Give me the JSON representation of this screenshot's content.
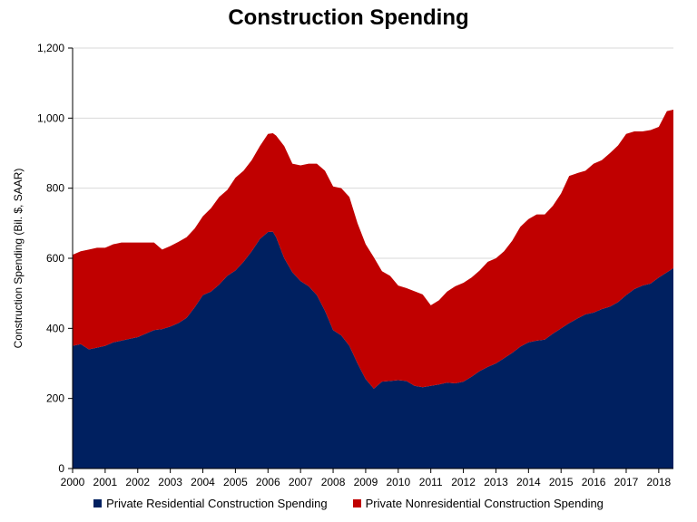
{
  "chart_data": {
    "type": "area",
    "stacked": true,
    "title": "Construction Spending",
    "ylabel": "Construction Spending (Bil. $, SAAR)",
    "xlabel": "",
    "x_tick_labels": [
      "2000",
      "2001",
      "2002",
      "2003",
      "2004",
      "2005",
      "2006",
      "2007",
      "2008",
      "2009",
      "2010",
      "2011",
      "2012",
      "2013",
      "2014",
      "2015",
      "2016",
      "2017",
      "2018"
    ],
    "y_tick_labels": [
      "0",
      "200",
      "400",
      "600",
      "800",
      "1,000",
      "1,200"
    ],
    "ylim": [
      0,
      1200
    ],
    "xlim": [
      2000,
      2018.45
    ],
    "grid": "horizontal",
    "legend_position": "bottom",
    "series": [
      {
        "name": "Private Residential Construction Spending",
        "color": "#002060",
        "points": [
          [
            2000.0,
            350
          ],
          [
            2000.25,
            355
          ],
          [
            2000.5,
            340
          ],
          [
            2000.75,
            345
          ],
          [
            2001.0,
            350
          ],
          [
            2001.25,
            360
          ],
          [
            2001.5,
            365
          ],
          [
            2001.75,
            370
          ],
          [
            2002.0,
            375
          ],
          [
            2002.25,
            385
          ],
          [
            2002.5,
            395
          ],
          [
            2002.75,
            398
          ],
          [
            2003.0,
            405
          ],
          [
            2003.25,
            415
          ],
          [
            2003.5,
            430
          ],
          [
            2003.75,
            460
          ],
          [
            2004.0,
            495
          ],
          [
            2004.25,
            505
          ],
          [
            2004.5,
            525
          ],
          [
            2004.75,
            550
          ],
          [
            2005.0,
            565
          ],
          [
            2005.25,
            590
          ],
          [
            2005.5,
            620
          ],
          [
            2005.75,
            655
          ],
          [
            2006.0,
            675
          ],
          [
            2006.15,
            676
          ],
          [
            2006.25,
            660
          ],
          [
            2006.5,
            600
          ],
          [
            2006.75,
            560
          ],
          [
            2007.0,
            535
          ],
          [
            2007.25,
            520
          ],
          [
            2007.5,
            495
          ],
          [
            2007.75,
            450
          ],
          [
            2008.0,
            395
          ],
          [
            2008.25,
            380
          ],
          [
            2008.5,
            350
          ],
          [
            2008.75,
            300
          ],
          [
            2009.0,
            255
          ],
          [
            2009.25,
            228
          ],
          [
            2009.5,
            248
          ],
          [
            2009.75,
            250
          ],
          [
            2010.0,
            252
          ],
          [
            2010.25,
            250
          ],
          [
            2010.5,
            236
          ],
          [
            2010.75,
            232
          ],
          [
            2011.0,
            236
          ],
          [
            2011.25,
            240
          ],
          [
            2011.5,
            245
          ],
          [
            2011.75,
            243
          ],
          [
            2012.0,
            248
          ],
          [
            2012.25,
            262
          ],
          [
            2012.5,
            278
          ],
          [
            2012.75,
            290
          ],
          [
            2013.0,
            300
          ],
          [
            2013.25,
            315
          ],
          [
            2013.5,
            330
          ],
          [
            2013.75,
            348
          ],
          [
            2014.0,
            360
          ],
          [
            2014.25,
            365
          ],
          [
            2014.5,
            368
          ],
          [
            2014.75,
            385
          ],
          [
            2015.0,
            400
          ],
          [
            2015.25,
            415
          ],
          [
            2015.5,
            428
          ],
          [
            2015.75,
            440
          ],
          [
            2016.0,
            445
          ],
          [
            2016.25,
            455
          ],
          [
            2016.5,
            462
          ],
          [
            2016.75,
            475
          ],
          [
            2017.0,
            495
          ],
          [
            2017.25,
            512
          ],
          [
            2017.5,
            522
          ],
          [
            2017.75,
            528
          ],
          [
            2018.0,
            545
          ],
          [
            2018.25,
            560
          ],
          [
            2018.45,
            572
          ]
        ]
      },
      {
        "name": "Private Nonresidential Construction Spending",
        "color": "#c00000",
        "points": [
          [
            2000.0,
            260
          ],
          [
            2000.25,
            265
          ],
          [
            2000.5,
            285
          ],
          [
            2000.75,
            285
          ],
          [
            2001.0,
            280
          ],
          [
            2001.25,
            280
          ],
          [
            2001.5,
            280
          ],
          [
            2001.75,
            275
          ],
          [
            2002.0,
            270
          ],
          [
            2002.25,
            260
          ],
          [
            2002.5,
            250
          ],
          [
            2002.75,
            227
          ],
          [
            2003.0,
            230
          ],
          [
            2003.25,
            232
          ],
          [
            2003.5,
            230
          ],
          [
            2003.75,
            225
          ],
          [
            2004.0,
            225
          ],
          [
            2004.25,
            238
          ],
          [
            2004.5,
            250
          ],
          [
            2004.75,
            245
          ],
          [
            2005.0,
            265
          ],
          [
            2005.25,
            260
          ],
          [
            2005.5,
            260
          ],
          [
            2005.75,
            265
          ],
          [
            2006.0,
            280
          ],
          [
            2006.15,
            281
          ],
          [
            2006.25,
            290
          ],
          [
            2006.5,
            320
          ],
          [
            2006.75,
            310
          ],
          [
            2007.0,
            330
          ],
          [
            2007.25,
            350
          ],
          [
            2007.5,
            375
          ],
          [
            2007.75,
            400
          ],
          [
            2008.0,
            410
          ],
          [
            2008.25,
            420
          ],
          [
            2008.5,
            425
          ],
          [
            2008.75,
            400
          ],
          [
            2009.0,
            385
          ],
          [
            2009.25,
            375
          ],
          [
            2009.5,
            315
          ],
          [
            2009.75,
            300
          ],
          [
            2010.0,
            270
          ],
          [
            2010.25,
            265
          ],
          [
            2010.5,
            270
          ],
          [
            2010.75,
            265
          ],
          [
            2011.0,
            230
          ],
          [
            2011.25,
            240
          ],
          [
            2011.5,
            260
          ],
          [
            2011.75,
            277
          ],
          [
            2012.0,
            282
          ],
          [
            2012.25,
            283
          ],
          [
            2012.5,
            287
          ],
          [
            2012.75,
            300
          ],
          [
            2013.0,
            300
          ],
          [
            2013.25,
            305
          ],
          [
            2013.5,
            320
          ],
          [
            2013.75,
            342
          ],
          [
            2014.0,
            352
          ],
          [
            2014.25,
            360
          ],
          [
            2014.5,
            357
          ],
          [
            2014.75,
            365
          ],
          [
            2015.0,
            385
          ],
          [
            2015.25,
            420
          ],
          [
            2015.5,
            415
          ],
          [
            2015.75,
            410
          ],
          [
            2016.0,
            425
          ],
          [
            2016.25,
            425
          ],
          [
            2016.5,
            438
          ],
          [
            2016.75,
            447
          ],
          [
            2017.0,
            460
          ],
          [
            2017.25,
            450
          ],
          [
            2017.5,
            440
          ],
          [
            2017.75,
            438
          ],
          [
            2018.0,
            430
          ],
          [
            2018.25,
            460
          ],
          [
            2018.45,
            452
          ]
        ]
      }
    ]
  }
}
